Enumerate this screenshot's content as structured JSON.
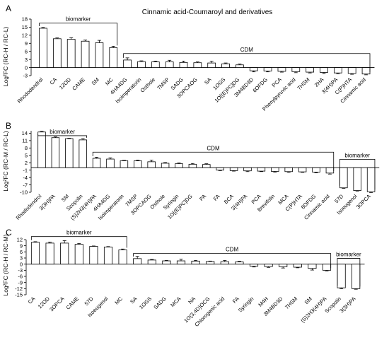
{
  "figure_title": "Cinnamic acid-Coumaroyl and derivatives",
  "chart_data": [
    {
      "type": "bar",
      "panel": "A",
      "ylabel": "Log²FC (RC-H / RC-L)",
      "ylim": [
        -3,
        18
      ],
      "yticks": [
        -3,
        0,
        3,
        6,
        9,
        12,
        15,
        18
      ],
      "grid": false,
      "categories": [
        "Rhododendrol",
        "CA",
        "12OD",
        "CAME",
        "SM",
        "MC",
        "4HA4DG",
        "Isoimperatorin",
        "Osthole",
        "7MSP",
        "SADG",
        "3OPCAOG",
        "SA",
        "1OGS",
        "1O[(E)PC]DG",
        "3M4BD3D",
        "6OFDG",
        "PCA",
        "Phenylpyruvic acid",
        "7HSM",
        "2HA",
        "3(4H)PA",
        "C(P)HTA",
        "Cinnamic acid"
      ],
      "values": [
        14.6,
        10.7,
        10.5,
        9.8,
        9.2,
        7.4,
        2.8,
        2.2,
        2.1,
        2.1,
        1.9,
        1.8,
        1.7,
        1.4,
        1.0,
        -1.2,
        -1.3,
        -1.4,
        -1.5,
        -1.7,
        -1.8,
        -2.0,
        -2.2,
        -2.4
      ],
      "errors": [
        0.3,
        0.3,
        0.6,
        0.4,
        0.9,
        0.5,
        0.8,
        0.3,
        0.3,
        0.6,
        0.5,
        0.3,
        0.7,
        0.3,
        0.3,
        0.4,
        0.3,
        0.3,
        0.4,
        0.3,
        0.4,
        0.3,
        0.3,
        0.3
      ],
      "annotations": [
        {
          "label": "biomarker",
          "from": 0,
          "to": 5,
          "level": 16.5
        },
        {
          "label": "CDM",
          "from": 6,
          "to": 23,
          "level": 5.2
        }
      ]
    },
    {
      "type": "bar",
      "panel": "B",
      "ylabel": "Log²FC (RC-M / RC-L)",
      "ylim": [
        -10,
        15
      ],
      "yticks": [
        -10,
        -7,
        -4,
        -1,
        2,
        5,
        8,
        11,
        14
      ],
      "grid": false,
      "categories": [
        "Rhododendrol",
        "3(3H)PA",
        "SM",
        "Scopolin",
        "(S)2H3(4H)PA",
        "4HA4DG",
        "Isoimperatorin",
        "7MSP",
        "3OPCAOG",
        "Osthole",
        "Syringin",
        "1O[(E)PC]DG",
        "PA",
        "FA",
        "BCA",
        "3(4H)PA",
        "PCA",
        "Brevifolin",
        "MCA",
        "C(P)HTA",
        "6OFDG",
        "Cinnamic acid",
        "57D",
        "Isoeugenol",
        "3OPCA"
      ],
      "values": [
        14.5,
        12.2,
        11.8,
        11.3,
        3.8,
        3.5,
        2.8,
        2.8,
        2.4,
        1.8,
        1.6,
        1.4,
        1.3,
        -1.0,
        -1.2,
        -1.3,
        -1.4,
        -1.5,
        -1.6,
        -1.7,
        -1.8,
        -2.2,
        -8.2,
        -9.3,
        -9.8
      ],
      "errors": [
        0.3,
        0.3,
        0.2,
        0.5,
        0.4,
        0.5,
        0.2,
        0.3,
        0.7,
        0.3,
        0.3,
        0.3,
        0.3,
        0.2,
        0.2,
        0.3,
        0.2,
        0.3,
        0.3,
        0.2,
        0.3,
        0.4,
        0.2,
        0.2,
        0.3
      ],
      "annotations": [
        {
          "label": "biomarker",
          "from": 0,
          "to": 3,
          "level": 13.0
        },
        {
          "label": "CDM",
          "from": 4,
          "to": 21,
          "level": 6.3
        },
        {
          "label": "biomarker",
          "from": 22,
          "to": 24,
          "level": 3.4
        }
      ]
    },
    {
      "type": "bar",
      "panel": "C",
      "ylabel": "Log²FC (RC-H / RC-M)",
      "ylim": [
        -15,
        12
      ],
      "yticks": [
        -15,
        -12,
        -9,
        -6,
        -3,
        0,
        3,
        6,
        9,
        12
      ],
      "grid": false,
      "categories": [
        "CA",
        "12OD",
        "3OPCA",
        "CAME",
        "57D",
        "Isoeugenol",
        "MC",
        "SA",
        "1OGS",
        "SADG",
        "MCA",
        "NA",
        "1O(3,4D)OCG",
        "Chlorogenic acid",
        "FA",
        "Syringin",
        "M4H",
        "3M4BD3D",
        "7HSM",
        "SM",
        "(S)2H3(4H)PA",
        "Scopolin",
        "3(3H)PA"
      ],
      "values": [
        10.7,
        10.3,
        10.3,
        9.7,
        8.7,
        8.4,
        7.0,
        2.7,
        2.0,
        1.6,
        1.6,
        1.5,
        1.3,
        1.2,
        1.1,
        -1.0,
        -1.2,
        -1.3,
        -1.5,
        -2.1,
        -3.0,
        -11.6,
        -12.0
      ],
      "errors": [
        0.3,
        0.5,
        1.2,
        0.4,
        0.2,
        0.2,
        0.4,
        1.1,
        0.3,
        0.2,
        0.8,
        0.3,
        0.2,
        0.6,
        0.3,
        0.4,
        0.4,
        0.6,
        0.3,
        0.8,
        0.3,
        0.4,
        0.3
      ],
      "annotations": [
        {
          "label": "biomarker",
          "from": 0,
          "to": 6,
          "level": 13.5
        },
        {
          "label": "CDM",
          "from": 7,
          "to": 20,
          "level": 5.2
        },
        {
          "label": "biomarker",
          "from": 21,
          "to": 22,
          "level": 2.8
        }
      ]
    }
  ]
}
